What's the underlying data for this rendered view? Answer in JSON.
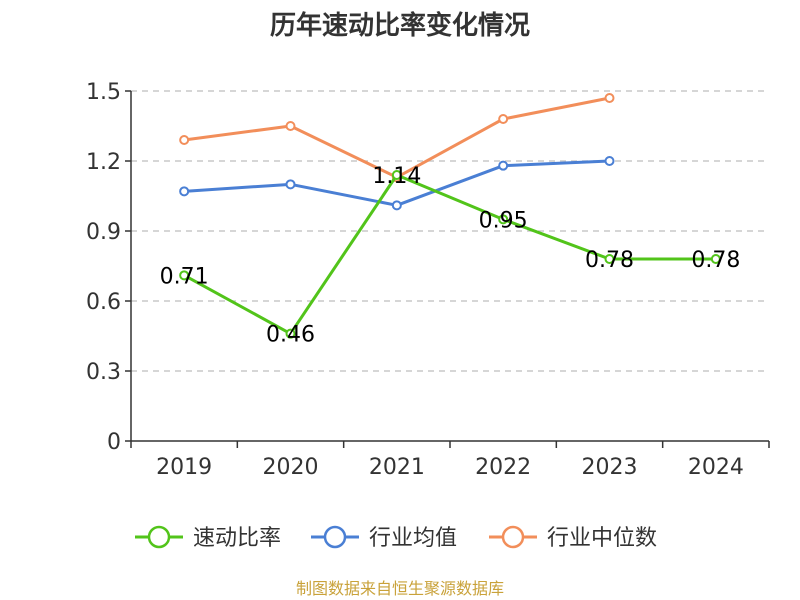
{
  "chart_data": {
    "type": "line",
    "title": "历年速动比率变化情况",
    "categories": [
      "2019",
      "2020",
      "2021",
      "2022",
      "2023",
      "2024"
    ],
    "ylim": [
      0,
      1.5
    ],
    "yticks": [
      "0",
      "0.3",
      "0.6",
      "0.9",
      "1.2",
      "1.5"
    ],
    "ytick_values": [
      0,
      0.3,
      0.6,
      0.9,
      1.2,
      1.5
    ],
    "grid": true,
    "legend_position": "bottom",
    "series": [
      {
        "name": "速动比率",
        "color": "#52c41a",
        "values": [
          0.71,
          0.46,
          1.14,
          0.95,
          0.78,
          0.78
        ],
        "labels": [
          "0.71",
          "0.46",
          "1.14",
          "0.95",
          "0.78",
          "0.78"
        ],
        "show_labels": true
      },
      {
        "name": "行业均值",
        "color": "#4a7fd4",
        "values": [
          1.07,
          1.1,
          1.01,
          1.18,
          1.2,
          null
        ],
        "show_labels": false
      },
      {
        "name": "行业中位数",
        "color": "#f28e5a",
        "values": [
          1.29,
          1.35,
          1.13,
          1.38,
          1.47,
          null
        ],
        "show_labels": false
      }
    ],
    "source": "制图数据来自恒生聚源数据库"
  }
}
